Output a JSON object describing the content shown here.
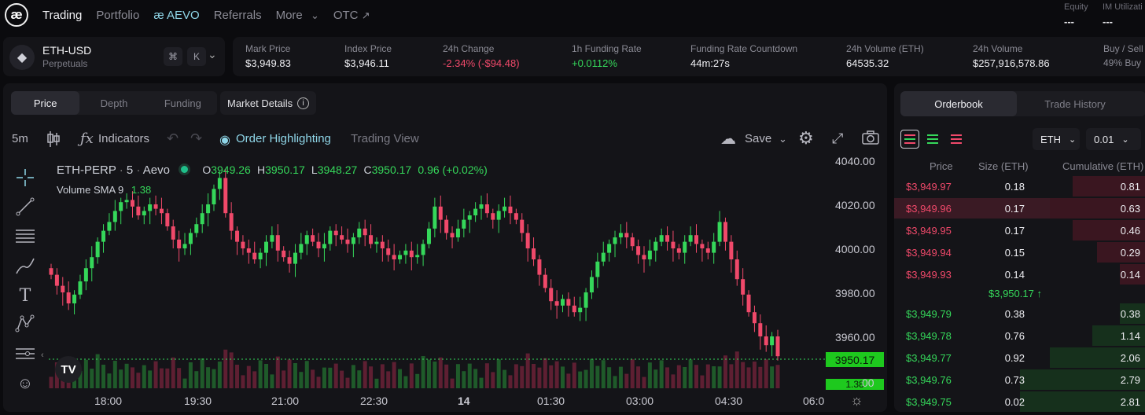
{
  "nav": {
    "logo": "æ",
    "items": [
      "Trading",
      "Portfolio",
      "AEVO",
      "Referrals",
      "More",
      "OTC"
    ],
    "aevo_prefix": "æ",
    "more_chevron": "⌄",
    "otc_arrow": "↗"
  },
  "account": {
    "equity_label": "Equity",
    "equity_value": "---",
    "im_label": "IM Utilizati",
    "im_value": "---"
  },
  "ticker": {
    "symbol": "ETH-USD",
    "type": "Perpetuals",
    "cmd_key": "⌘",
    "k_key": "K",
    "chevron": "⌄"
  },
  "stats": [
    {
      "label": "Mark Price",
      "value": "$3,949.83",
      "color": "neutral"
    },
    {
      "label": "Index Price",
      "value": "$3,946.11",
      "color": "neutral"
    },
    {
      "label": "24h Change",
      "value": "-2.34% (-$94.48)",
      "color": "red"
    },
    {
      "label": "1h Funding Rate",
      "value": "+0.0112%",
      "color": "green"
    },
    {
      "label": "Funding Rate Countdown",
      "value": "44m:27s",
      "color": "neutral"
    },
    {
      "label": "24h Volume (ETH)",
      "value": "64535.32",
      "color": "neutral"
    },
    {
      "label": "24h Volume",
      "value": "$257,916,578.86",
      "color": "neutral"
    },
    {
      "label": "Buy / Sell V",
      "value": "49% Buy",
      "color": "muted"
    }
  ],
  "chart_tabs": [
    "Price",
    "Depth",
    "Funding"
  ],
  "market_details": "Market Details",
  "toolbar": {
    "interval": "5m",
    "indicators": "Indicators",
    "order_highlighting": "Order Highlighting",
    "trading_view": "Trading View",
    "save": "Save"
  },
  "legend": {
    "symbol": "ETH-PERP",
    "interval": "5",
    "exchange": "Aevo",
    "o_label": "O",
    "o_value": "3949.26",
    "h_label": "H",
    "h_value": "3950.17",
    "l_label": "L",
    "l_value": "3948.27",
    "c_label": "C",
    "c_value": "3950.17",
    "change": "0.96 (+0.02%)",
    "volume_label": "Volume SMA 9",
    "volume_value": "1.38"
  },
  "chart_data": {
    "type": "candlestick",
    "price_axis": [
      "4040.00",
      "4020.00",
      "4000.00",
      "3980.00",
      "3960.00"
    ],
    "time_axis": [
      "18:00",
      "19:30",
      "21:00",
      "22:30",
      "14",
      "01:30",
      "03:00",
      "04:30",
      "06:0"
    ],
    "last_price": "3950.17",
    "volume_tag": "1.38",
    "ylim": [
      3950,
      4040
    ],
    "close": [
      3988,
      3983,
      3980,
      3975,
      3979,
      3985,
      3991,
      3996,
      4003,
      4008,
      4012,
      4017,
      4021,
      4022,
      4019,
      4015,
      4017,
      4020,
      4018,
      4016,
      4010,
      4004,
      4000,
      4002,
      4007,
      4011,
      4016,
      4020,
      4027,
      4032,
      4016,
      4008,
      4003,
      4000,
      3998,
      3995,
      3998,
      4003,
      4006,
      3999,
      3996,
      3993,
      3998,
      4002,
      4006,
      4003,
      4000,
      4002,
      4008,
      4006,
      4004,
      4002,
      4005,
      4009,
      4006,
      4002,
      4003,
      4000,
      3997,
      3995,
      3997,
      3999,
      3996,
      3997,
      4002,
      4009,
      4019,
      4013,
      4007,
      4005,
      4009,
      4013,
      4015,
      4018,
      4020,
      4016,
      4013,
      4017,
      4019,
      4016,
      4013,
      4007,
      4000,
      3995,
      3988,
      3982,
      3976,
      3974,
      3977,
      3974,
      3971,
      3973,
      3980,
      3987,
      3994,
      3998,
      4002,
      4005,
      4007,
      4005,
      4001,
      3997,
      3995,
      3999,
      4003,
      4006,
      4003,
      4000,
      3998,
      4003,
      4006,
      4002,
      4000,
      3998,
      4003,
      4012,
      4003,
      3995,
      3986,
      3979,
      3971,
      3966,
      3960,
      3956,
      3960,
      3951
    ]
  },
  "orderbook": {
    "tabs": [
      "Orderbook",
      "Trade History"
    ],
    "asset": "ETH",
    "tick": "0.01",
    "headers": [
      "Price",
      "Size (ETH)",
      "Cumulative (ETH)"
    ],
    "asks": [
      {
        "price": "$3,949.97",
        "size": "0.18",
        "cum": "0.81",
        "depth": 0.29
      },
      {
        "price": "$3,949.96",
        "size": "0.17",
        "cum": "0.63",
        "depth": 0.38
      },
      {
        "price": "$3,949.95",
        "size": "0.17",
        "cum": "0.46",
        "depth": 0.29
      },
      {
        "price": "$3,949.94",
        "size": "0.15",
        "cum": "0.29",
        "depth": 0.19
      },
      {
        "price": "$3,949.93",
        "size": "0.14",
        "cum": "0.14",
        "depth": 0.1
      }
    ],
    "mid_price": "$3,950.17",
    "mid_arrow": "↑",
    "bids": [
      {
        "price": "$3,949.79",
        "size": "0.38",
        "cum": "0.38",
        "depth": 0.1
      },
      {
        "price": "$3,949.78",
        "size": "0.76",
        "cum": "1.14",
        "depth": 0.21
      },
      {
        "price": "$3,949.77",
        "size": "0.92",
        "cum": "2.06",
        "depth": 0.38
      },
      {
        "price": "$3,949.76",
        "size": "0.73",
        "cum": "2.79",
        "depth": 0.5
      },
      {
        "price": "$3,949.75",
        "size": "0.02",
        "cum": "2.81",
        "depth": 0.5
      }
    ]
  },
  "colors": {
    "green": "#35d75a",
    "red": "#f0496a",
    "accent": "#8fd6e8",
    "bg": "#0b0b0e",
    "panel": "#141418"
  }
}
